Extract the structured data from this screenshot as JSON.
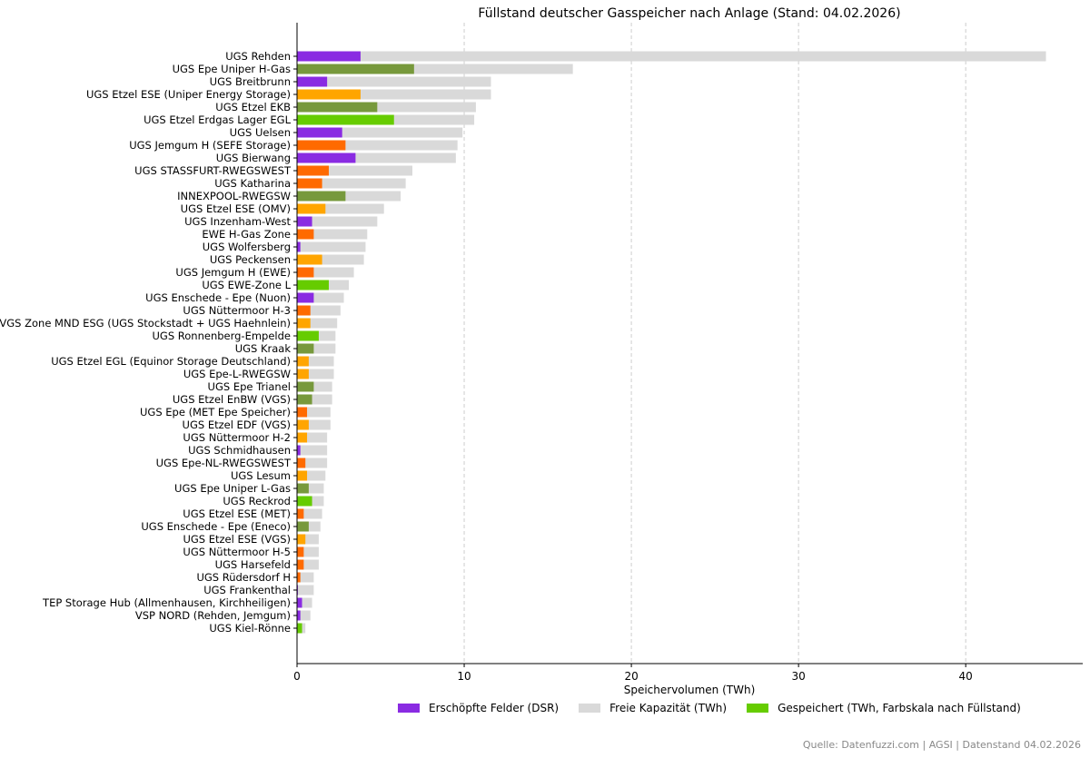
{
  "chart_data": {
    "type": "bar",
    "orientation": "horizontal",
    "stacked": true,
    "title": "Füllstand deutscher Gasspeicher nach Anlage (Stand: 04.02.2026)",
    "xlabel": "Speichervolumen (TWh)",
    "ylabel": "",
    "xlim": [
      0,
      47
    ],
    "xticks": [
      0,
      10,
      20,
      30,
      40
    ],
    "grid": "x-dashed",
    "series": [
      {
        "name": "Gespeichert (TWh)",
        "color_by_status": true
      },
      {
        "name": "Freie Kapazität (TWh)",
        "color": "#d9d9d9"
      }
    ],
    "facilities": [
      {
        "name": "UGS Rehden",
        "stored": 3.8,
        "capacity": 44.8,
        "color": "#8a2be2"
      },
      {
        "name": "UGS Epe Uniper H-Gas",
        "stored": 7.0,
        "capacity": 16.5,
        "color": "#77993c"
      },
      {
        "name": "UGS Breitbrunn",
        "stored": 1.8,
        "capacity": 11.6,
        "color": "#8a2be2"
      },
      {
        "name": "UGS Etzel ESE (Uniper Energy Storage)",
        "stored": 3.8,
        "capacity": 11.6,
        "color": "#ffa500"
      },
      {
        "name": "UGS Etzel EKB",
        "stored": 4.8,
        "capacity": 10.7,
        "color": "#77993c"
      },
      {
        "name": "UGS Etzel Erdgas Lager EGL",
        "stored": 5.8,
        "capacity": 10.6,
        "color": "#66cc00"
      },
      {
        "name": "UGS Uelsen",
        "stored": 2.7,
        "capacity": 9.9,
        "color": "#8a2be2"
      },
      {
        "name": "UGS Jemgum H (SEFE Storage)",
        "stored": 2.9,
        "capacity": 9.6,
        "color": "#ff6a00"
      },
      {
        "name": "UGS Bierwang",
        "stored": 3.5,
        "capacity": 9.5,
        "color": "#8a2be2"
      },
      {
        "name": "UGS STASSFURT-RWEGSWEST",
        "stored": 1.9,
        "capacity": 6.9,
        "color": "#ff6a00"
      },
      {
        "name": "UGS Katharina",
        "stored": 1.5,
        "capacity": 6.5,
        "color": "#ff6a00"
      },
      {
        "name": "INNEXPOOL-RWEGSW",
        "stored": 2.9,
        "capacity": 6.2,
        "color": "#77993c"
      },
      {
        "name": "UGS Etzel ESE (OMV)",
        "stored": 1.7,
        "capacity": 5.2,
        "color": "#ffa500"
      },
      {
        "name": "UGS Inzenham-West",
        "stored": 0.9,
        "capacity": 4.8,
        "color": "#8a2be2"
      },
      {
        "name": "EWE H-Gas Zone",
        "stored": 1.0,
        "capacity": 4.2,
        "color": "#ff6a00"
      },
      {
        "name": "UGS Wolfersberg",
        "stored": 0.2,
        "capacity": 4.1,
        "color": "#8a2be2"
      },
      {
        "name": "UGS Peckensen",
        "stored": 1.5,
        "capacity": 4.0,
        "color": "#ffa500"
      },
      {
        "name": "UGS Jemgum H (EWE)",
        "stored": 1.0,
        "capacity": 3.4,
        "color": "#ff6a00"
      },
      {
        "name": "UGS EWE-Zone L",
        "stored": 1.9,
        "capacity": 3.1,
        "color": "#66cc00"
      },
      {
        "name": "UGS Enschede - Epe (Nuon)",
        "stored": 1.0,
        "capacity": 2.8,
        "color": "#8a2be2"
      },
      {
        "name": "UGS Nüttermoor H-3",
        "stored": 0.8,
        "capacity": 2.6,
        "color": "#ff6a00"
      },
      {
        "name": "VGS Zone MND ESG (UGS Stockstadt + UGS Haehnlein)",
        "stored": 0.8,
        "capacity": 2.4,
        "color": "#ffa500"
      },
      {
        "name": "UGS Ronnenberg-Empelde",
        "stored": 1.3,
        "capacity": 2.3,
        "color": "#66cc00"
      },
      {
        "name": "UGS Kraak",
        "stored": 1.0,
        "capacity": 2.3,
        "color": "#77993c"
      },
      {
        "name": "UGS Etzel EGL (Equinor Storage Deutschland)",
        "stored": 0.7,
        "capacity": 2.2,
        "color": "#ffa500"
      },
      {
        "name": "UGS Epe-L-RWEGSW",
        "stored": 0.7,
        "capacity": 2.2,
        "color": "#ffa500"
      },
      {
        "name": "UGS Epe Trianel",
        "stored": 1.0,
        "capacity": 2.1,
        "color": "#77993c"
      },
      {
        "name": "UGS Etzel EnBW (VGS)",
        "stored": 0.9,
        "capacity": 2.1,
        "color": "#77993c"
      },
      {
        "name": "UGS Epe (MET Epe Speicher)",
        "stored": 0.6,
        "capacity": 2.0,
        "color": "#ff6a00"
      },
      {
        "name": "UGS Etzel EDF (VGS)",
        "stored": 0.7,
        "capacity": 2.0,
        "color": "#ffa500"
      },
      {
        "name": "UGS Nüttermoor H-2",
        "stored": 0.6,
        "capacity": 1.8,
        "color": "#ffa500"
      },
      {
        "name": "UGS Schmidhausen",
        "stored": 0.2,
        "capacity": 1.8,
        "color": "#8a2be2"
      },
      {
        "name": "UGS Epe-NL-RWEGSWEST",
        "stored": 0.5,
        "capacity": 1.8,
        "color": "#ff6a00"
      },
      {
        "name": "UGS Lesum",
        "stored": 0.6,
        "capacity": 1.7,
        "color": "#ffa500"
      },
      {
        "name": "UGS Epe Uniper L-Gas",
        "stored": 0.7,
        "capacity": 1.6,
        "color": "#77993c"
      },
      {
        "name": "UGS Reckrod",
        "stored": 0.9,
        "capacity": 1.6,
        "color": "#66cc00"
      },
      {
        "name": "UGS Etzel ESE (MET)",
        "stored": 0.4,
        "capacity": 1.5,
        "color": "#ff6a00"
      },
      {
        "name": "UGS Enschede - Epe (Eneco)",
        "stored": 0.7,
        "capacity": 1.4,
        "color": "#77993c"
      },
      {
        "name": "UGS Etzel ESE (VGS)",
        "stored": 0.5,
        "capacity": 1.3,
        "color": "#ffa500"
      },
      {
        "name": "UGS Nüttermoor H-5",
        "stored": 0.4,
        "capacity": 1.3,
        "color": "#ff6a00"
      },
      {
        "name": "UGS Harsefeld",
        "stored": 0.4,
        "capacity": 1.3,
        "color": "#ff6a00"
      },
      {
        "name": "UGS Rüdersdorf H",
        "stored": 0.2,
        "capacity": 1.0,
        "color": "#ff6a00"
      },
      {
        "name": "UGS Frankenthal",
        "stored": 0.05,
        "capacity": 1.0,
        "color": "#8a2be2"
      },
      {
        "name": "TEP Storage Hub (Allmenhausen, Kirchheiligen)",
        "stored": 0.3,
        "capacity": 0.9,
        "color": "#8a2be2"
      },
      {
        "name": "VSP NORD (Rehden, Jemgum)",
        "stored": 0.2,
        "capacity": 0.8,
        "color": "#8a2be2"
      },
      {
        "name": "UGS Kiel-Rönne",
        "stored": 0.3,
        "capacity": 0.5,
        "color": "#66cc00"
      }
    ],
    "legend": [
      {
        "label": "Erschöpfte Felder (DSR)",
        "color": "#8a2be2"
      },
      {
        "label": "Freie Kapazität (TWh)",
        "color": "#d9d9d9"
      },
      {
        "label": "Gespeichert (TWh, Farbskala nach Füllstand)",
        "color": "#66cc00"
      }
    ],
    "legend_position": "bottom-center"
  },
  "footer": {
    "source": "Quelle: Datenfuzzi.com | AGSI | Datenstand 04.02.2026"
  }
}
